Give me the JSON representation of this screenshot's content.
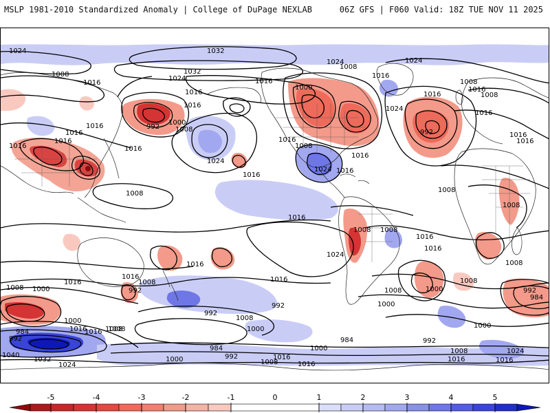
{
  "header": {
    "left_title": "MSLP 1981-2010 Standardized Anomaly | College of DuPage NEXLAB",
    "right_title": "06Z GFS | F060 Valid: 18Z TUE NOV 11 2025"
  },
  "colors": {
    "neg5": "#8c0c0c",
    "neg4": "#d43434",
    "neg3": "#ee6a5a",
    "neg2": "#f39a8a",
    "neg1": "#f9c9c0",
    "zero": "#ffffff",
    "pos1": "#c9cdf6",
    "pos2": "#a2a8ef",
    "pos3": "#6f77e6",
    "pos4": "#3a44d8",
    "pos5": "#0d18b6",
    "contour": "#000000",
    "coast": "#222222"
  },
  "colorbar": {
    "ticks": [
      "-5",
      "-4",
      "-3",
      "-2",
      "-1",
      "0",
      "1",
      "2",
      "3",
      "4",
      "5"
    ]
  },
  "isobar_labels": [
    {
      "text": "1024"
    },
    {
      "text": "1032"
    },
    {
      "text": "1032"
    },
    {
      "text": "1024"
    },
    {
      "text": "1024"
    },
    {
      "text": "1024"
    },
    {
      "text": "1008"
    },
    {
      "text": "1016"
    },
    {
      "text": "1016"
    },
    {
      "text": "1016"
    },
    {
      "text": "1016"
    },
    {
      "text": "1000"
    },
    {
      "text": "1008"
    },
    {
      "text": "1016"
    },
    {
      "text": "1016"
    },
    {
      "text": "1016"
    },
    {
      "text": "1008"
    },
    {
      "text": "992"
    },
    {
      "text": "1016"
    },
    {
      "text": "1016"
    },
    {
      "text": "1008"
    },
    {
      "text": "1024"
    },
    {
      "text": "1016"
    },
    {
      "text": "992"
    },
    {
      "text": "1000"
    },
    {
      "text": "1008"
    },
    {
      "text": "1024"
    },
    {
      "text": "1016"
    },
    {
      "text": "1016"
    },
    {
      "text": "1016"
    },
    {
      "text": "1016"
    },
    {
      "text": "1016"
    },
    {
      "text": "1016"
    },
    {
      "text": "1016"
    },
    {
      "text": "1024"
    },
    {
      "text": "1016"
    },
    {
      "text": "1016"
    },
    {
      "text": "1008"
    },
    {
      "text": "1008"
    },
    {
      "text": "1008"
    },
    {
      "text": "1016"
    },
    {
      "text": "1008"
    },
    {
      "text": "1008"
    },
    {
      "text": "1016"
    },
    {
      "text": "1016"
    },
    {
      "text": "1024"
    },
    {
      "text": "1016"
    },
    {
      "text": "1008"
    },
    {
      "text": "1016"
    },
    {
      "text": "1008"
    },
    {
      "text": "1000"
    },
    {
      "text": "1016"
    },
    {
      "text": "1016"
    },
    {
      "text": "1008"
    },
    {
      "text": "992"
    },
    {
      "text": "1016"
    },
    {
      "text": "1008"
    },
    {
      "text": "1000"
    },
    {
      "text": "992"
    },
    {
      "text": "1008"
    },
    {
      "text": "984"
    },
    {
      "text": "992"
    },
    {
      "text": "984"
    },
    {
      "text": "1000"
    },
    {
      "text": "1008"
    },
    {
      "text": "992"
    },
    {
      "text": "1008"
    },
    {
      "text": "992"
    },
    {
      "text": "984"
    },
    {
      "text": "1000"
    },
    {
      "text": "1008"
    },
    {
      "text": "1000"
    },
    {
      "text": "1008"
    },
    {
      "text": "1016"
    },
    {
      "text": "1024"
    },
    {
      "text": "1016"
    },
    {
      "text": "1000"
    },
    {
      "text": "992"
    },
    {
      "text": "1016"
    },
    {
      "text": "1040"
    },
    {
      "text": "1032"
    },
    {
      "text": "1024"
    },
    {
      "text": "1000"
    },
    {
      "text": "1008"
    },
    {
      "text": "1000"
    },
    {
      "text": "1008"
    },
    {
      "text": "1016"
    },
    {
      "text": "1016"
    },
    {
      "text": "992"
    },
    {
      "text": "984"
    }
  ]
}
